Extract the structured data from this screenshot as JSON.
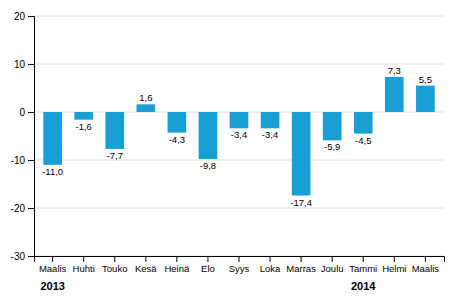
{
  "chart_data": {
    "type": "bar",
    "categories": [
      "Maalis",
      "Huhti",
      "Touko",
      "Kesä",
      "Heinä",
      "Elo",
      "Syys",
      "Loka",
      "Marras",
      "Joulu",
      "Tammi",
      "Helmi",
      "Maalis"
    ],
    "values": [
      -11.0,
      -1.6,
      -7.7,
      1.6,
      -4.3,
      -9.8,
      -3.4,
      -3.4,
      -17.4,
      -5.9,
      -4.5,
      7.3,
      5.5
    ],
    "value_labels": [
      "-11,0",
      "-1,6",
      "-7,7",
      "1,6",
      "-4,3",
      "-9,8",
      "-3,4",
      "-3,4",
      "-17,4",
      "-5,9",
      "-4,5",
      "7,3",
      "5,5"
    ],
    "data_labels": true,
    "color": "#1a9fd4",
    "ylim": [
      -30,
      20
    ],
    "yticks": [
      -30,
      -20,
      -10,
      0,
      10,
      20
    ],
    "grid": true,
    "annotations": [
      {
        "text": "2013",
        "x": 0
      },
      {
        "text": "2014",
        "x": 10
      }
    ]
  }
}
